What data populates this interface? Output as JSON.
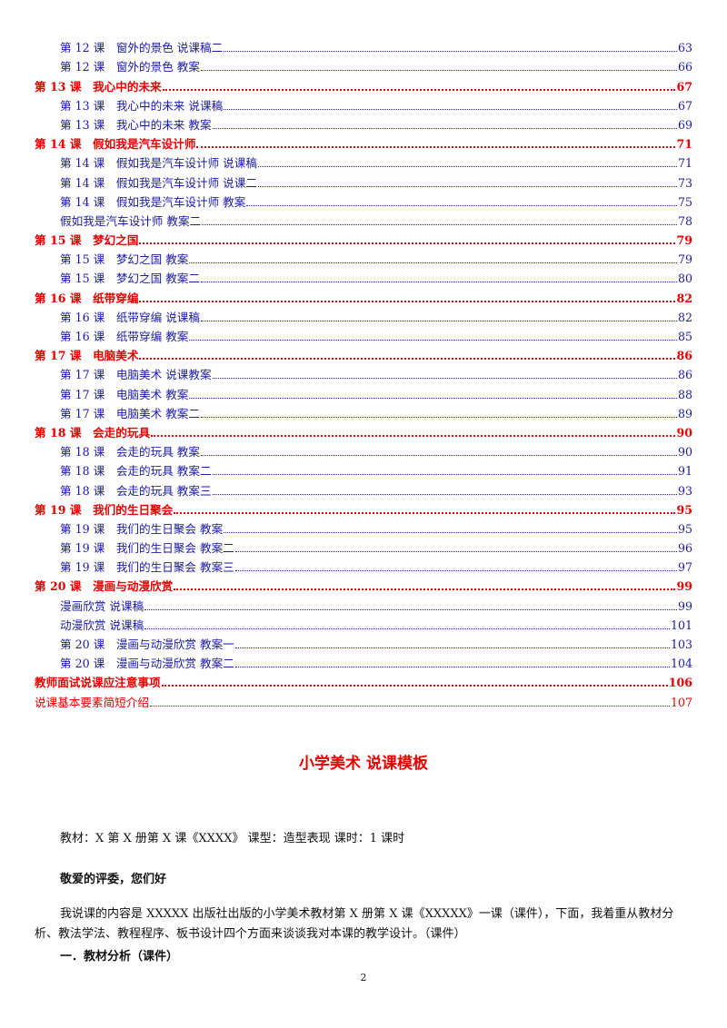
{
  "toc": [
    {
      "kind": "sub",
      "title": "第 12 课　窗外的景色  说课稿二",
      "page": "63"
    },
    {
      "kind": "sub",
      "title": "第 12 课　窗外的景色  教案",
      "page": "66"
    },
    {
      "kind": "head",
      "title": "第 13 课　我心中的未来",
      "page": "67"
    },
    {
      "kind": "sub",
      "title": "第 13 课　我心中的未来  说课稿",
      "page": "67"
    },
    {
      "kind": "sub",
      "title": "第 13 课　我心中的未来  教案",
      "page": "69"
    },
    {
      "kind": "head",
      "title": "第 14 课　假如我是汽车设计师",
      "page": "71"
    },
    {
      "kind": "sub",
      "title": "第 14 课　假如我是汽车设计师  说课稿",
      "page": "71"
    },
    {
      "kind": "sub",
      "title": "第 14 课　假如我是汽车设计师  说课二",
      "page": "73"
    },
    {
      "kind": "sub",
      "title": "第 14 课　假如我是汽车设计师  教案",
      "page": "75"
    },
    {
      "kind": "plain",
      "title": "假如我是汽车设计师  教案二",
      "page": "78"
    },
    {
      "kind": "head",
      "title": "第 15 课　梦幻之国",
      "page": "79"
    },
    {
      "kind": "sub",
      "title": "第 15 课　梦幻之国  教案",
      "page": "79"
    },
    {
      "kind": "sub",
      "title": "第 15 课　梦幻之国  教案二",
      "page": "80"
    },
    {
      "kind": "head",
      "title": "第 16 课　纸带穿编",
      "page": "82"
    },
    {
      "kind": "sub",
      "title": "第 16 课　纸带穿编  说课稿",
      "page": "82"
    },
    {
      "kind": "sub",
      "title": "第 16 课　纸带穿编  教案",
      "page": "85"
    },
    {
      "kind": "head",
      "title": "第 17 课　电脑美术",
      "page": "86"
    },
    {
      "kind": "sub",
      "title": "第 17 课　电脑美术  说课教案",
      "page": "86"
    },
    {
      "kind": "sub",
      "title": "第 17 课　电脑美术  教案",
      "page": "88"
    },
    {
      "kind": "sub",
      "title": "第 17 课　电脑美术  教案二",
      "page": "89"
    },
    {
      "kind": "head",
      "title": "第 18 课　会走的玩具",
      "page": "90"
    },
    {
      "kind": "sub",
      "title": "第 18 课　会走的玩具  教案",
      "page": "90"
    },
    {
      "kind": "sub",
      "title": "第 18 课　会走的玩具  教案二",
      "page": "91"
    },
    {
      "kind": "sub",
      "title": "第 18 课　会走的玩具  教案三",
      "page": "93"
    },
    {
      "kind": "head",
      "title": "第 19 课　我们的生日聚会",
      "page": "95"
    },
    {
      "kind": "sub",
      "title": "第 19 课　我们的生日聚会  教案",
      "page": "95"
    },
    {
      "kind": "sub",
      "title": "第 19 课　我们的生日聚会  教案二",
      "page": "96"
    },
    {
      "kind": "sub",
      "title": "第 19 课　我们的生日聚会  教案三",
      "page": "97"
    },
    {
      "kind": "head",
      "title": "第 20 课　漫画与动漫欣赏",
      "page": "99"
    },
    {
      "kind": "plain",
      "title": "漫画欣赏  说课稿",
      "page": "99"
    },
    {
      "kind": "plain",
      "title": "动漫欣赏  说课稿",
      "page": "101"
    },
    {
      "kind": "sub",
      "title": "第 20 课　漫画与动漫欣赏  教案一",
      "page": "103"
    },
    {
      "kind": "sub",
      "title": "第 20 课　漫画与动漫欣赏  教案二",
      "page": "104"
    },
    {
      "kind": "footer-red",
      "title": "教师面试说课应注意事项",
      "page": "106"
    },
    {
      "kind": "footer-red2",
      "title": "说课基本要素简短介绍",
      "page": "107"
    }
  ],
  "doc": {
    "title": "小学美术  说课模板",
    "meta": "教材：X 第 X 册第 X 课《XXXX》  课型：造型表现  课时：1 课时",
    "greeting": "敬爱的评委，您们好",
    "paragraph": "我说课的内容是 XXXXX 出版社出版的小学美术教材第 X 册第 X 课《XXXXX》一课（课件），下面，我着重从教材分析、教法学法、教程程序、板书设计四个方面来谈谈我对本课的教学设计。（课件）",
    "section1": "一．教材分析（课件）",
    "page_number": "2"
  }
}
